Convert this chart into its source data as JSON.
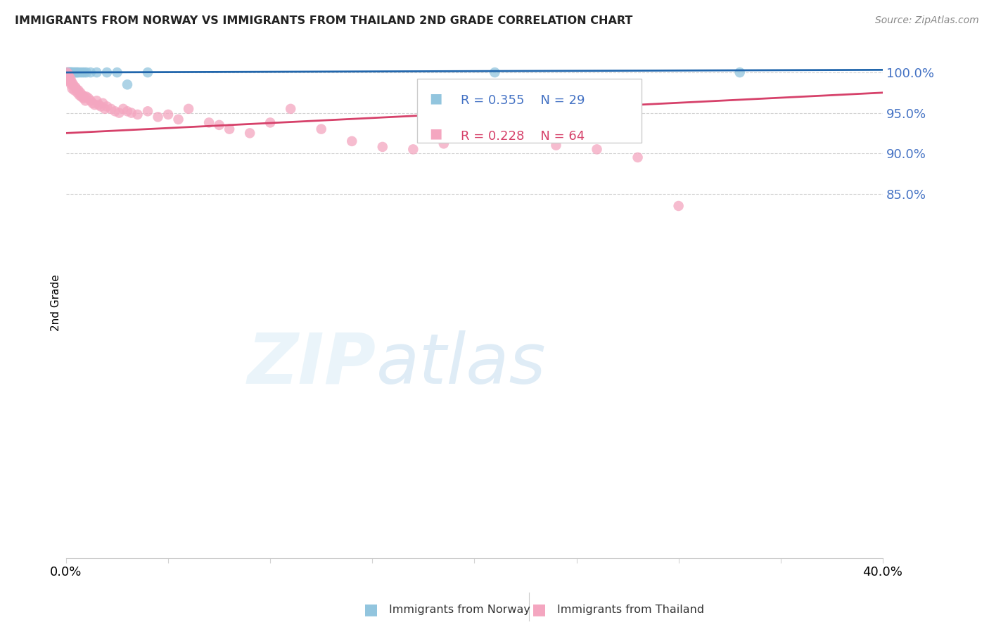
{
  "title": "IMMIGRANTS FROM NORWAY VS IMMIGRANTS FROM THAILAND 2ND GRADE CORRELATION CHART",
  "source": "Source: ZipAtlas.com",
  "ylabel": "2nd Grade",
  "xlim": [
    0.0,
    40.0
  ],
  "ylim": [
    40.0,
    103.0
  ],
  "yticks": [
    85.0,
    90.0,
    95.0,
    100.0
  ],
  "norway_R": 0.355,
  "norway_N": 29,
  "thailand_R": 0.228,
  "thailand_N": 64,
  "norway_color": "#92c5de",
  "thailand_color": "#f4a6c0",
  "norway_line_color": "#2166ac",
  "thailand_line_color": "#d6416a",
  "norway_x": [
    0.05,
    0.08,
    0.1,
    0.12,
    0.15,
    0.18,
    0.2,
    0.22,
    0.25,
    0.28,
    0.3,
    0.35,
    0.4,
    0.45,
    0.5,
    0.55,
    0.6,
    0.7,
    0.8,
    0.9,
    1.0,
    1.2,
    1.5,
    2.0,
    2.5,
    3.0,
    4.0,
    21.0,
    33.0
  ],
  "norway_y": [
    100.0,
    100.0,
    100.0,
    100.0,
    100.0,
    100.0,
    100.0,
    100.0,
    100.0,
    100.0,
    100.0,
    100.0,
    100.0,
    100.0,
    100.0,
    100.0,
    100.0,
    100.0,
    100.0,
    100.0,
    100.0,
    100.0,
    100.0,
    100.0,
    100.0,
    98.5,
    100.0,
    100.0,
    100.0
  ],
  "thailand_x": [
    0.05,
    0.08,
    0.1,
    0.12,
    0.15,
    0.18,
    0.2,
    0.22,
    0.25,
    0.28,
    0.3,
    0.35,
    0.4,
    0.45,
    0.5,
    0.55,
    0.6,
    0.65,
    0.7,
    0.75,
    0.8,
    0.85,
    0.9,
    0.95,
    1.0,
    1.1,
    1.2,
    1.3,
    1.4,
    1.5,
    1.6,
    1.7,
    1.8,
    1.9,
    2.0,
    2.2,
    2.4,
    2.6,
    2.8,
    3.0,
    3.2,
    3.5,
    4.0,
    4.5,
    5.0,
    5.5,
    6.0,
    7.0,
    7.5,
    8.0,
    9.0,
    10.0,
    11.0,
    12.5,
    14.0,
    15.5,
    17.0,
    18.5,
    20.0,
    22.0,
    24.0,
    26.0,
    28.0,
    30.0
  ],
  "thailand_y": [
    100.0,
    99.5,
    99.8,
    99.2,
    99.5,
    99.0,
    98.8,
    99.2,
    98.5,
    98.8,
    98.0,
    98.5,
    97.8,
    98.2,
    98.0,
    97.5,
    97.8,
    97.2,
    97.5,
    97.0,
    97.2,
    96.8,
    97.0,
    96.5,
    97.0,
    96.8,
    96.5,
    96.2,
    96.0,
    96.5,
    96.0,
    95.8,
    96.2,
    95.5,
    95.8,
    95.5,
    95.2,
    95.0,
    95.5,
    95.2,
    95.0,
    94.8,
    95.2,
    94.5,
    94.8,
    94.2,
    95.5,
    93.8,
    93.5,
    93.0,
    92.5,
    93.8,
    95.5,
    93.0,
    91.5,
    90.8,
    90.5,
    91.2,
    93.2,
    92.0,
    91.0,
    90.5,
    89.5,
    83.5
  ]
}
